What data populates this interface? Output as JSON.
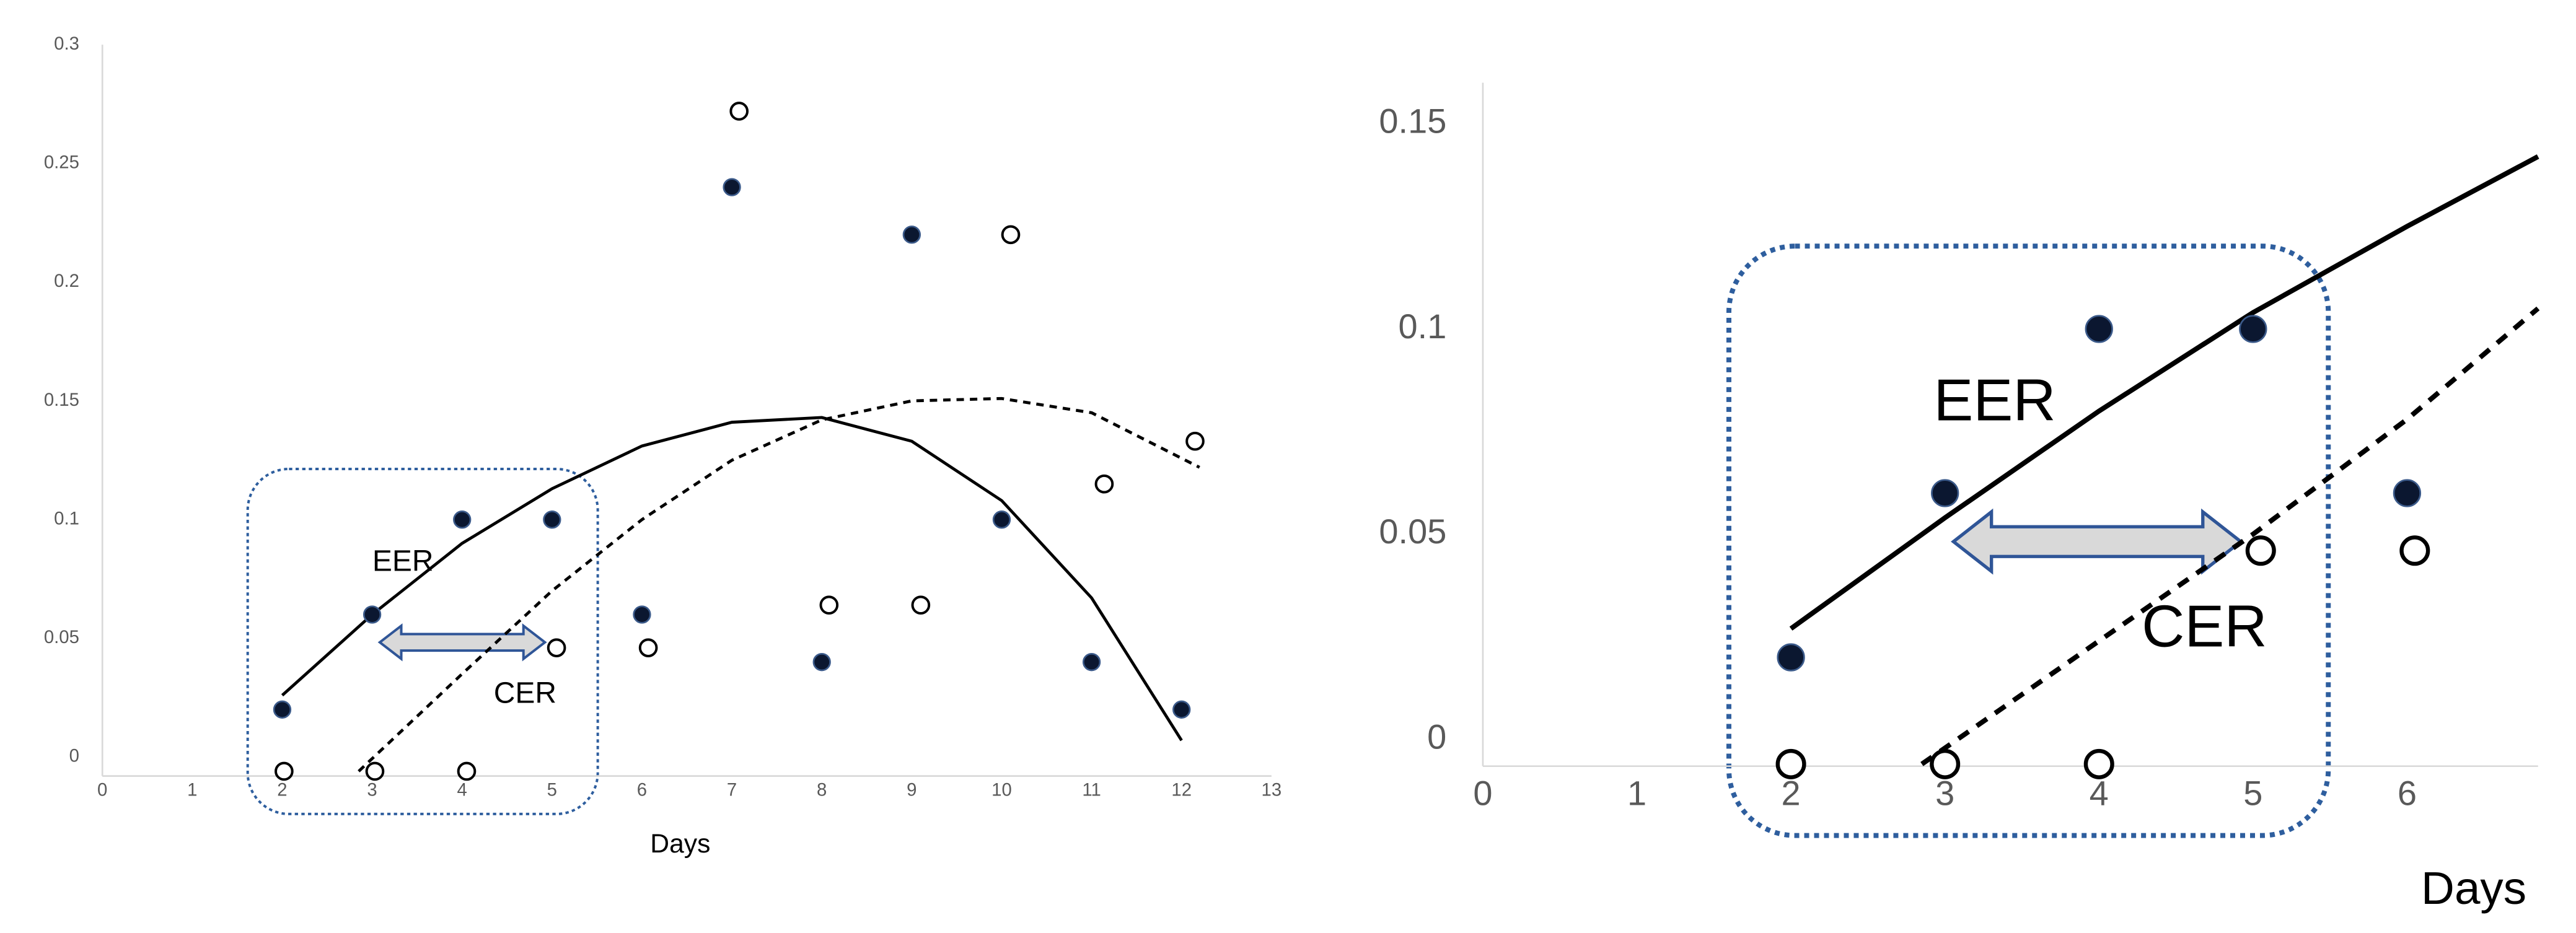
{
  "chart_data": [
    {
      "type": "scatter",
      "x_label": "Days",
      "xlim": [
        0,
        13
      ],
      "xticks": [
        0,
        1,
        2,
        3,
        4,
        5,
        6,
        7,
        8,
        9,
        10,
        11,
        12,
        13
      ],
      "ylim": [
        -0.008,
        0.3
      ],
      "yticks": [
        0,
        0.05,
        0.1,
        0.15,
        0.2,
        0.25,
        0.3
      ],
      "annotations": [
        "EER",
        "CER"
      ],
      "series": [
        {
          "marker": "filled",
          "color": "#0b1730",
          "x": [
            2,
            3,
            4,
            5,
            6,
            7,
            8,
            9,
            10,
            11,
            12
          ],
          "values": [
            0.02,
            0.06,
            0.1,
            0.1,
            0.06,
            0.24,
            0.04,
            0.22,
            0.1,
            0.04,
            0.02
          ]
        },
        {
          "marker": "open",
          "color": "#000000",
          "x": [
            2.02,
            3.03,
            4.05,
            5.05,
            6.07,
            7.08,
            8.08,
            9.1,
            10.1,
            11.14,
            12.15
          ],
          "values": [
            -0.006,
            -0.006,
            -0.006,
            0.046,
            0.046,
            0.272,
            0.064,
            0.064,
            0.22,
            0.115,
            0.133
          ]
        },
        {
          "line": "solid",
          "color": "#000000",
          "x": [
            2,
            3,
            4,
            5,
            6,
            7,
            8,
            9,
            10,
            11,
            12
          ],
          "values": [
            0.026,
            0.06,
            0.09,
            0.113,
            0.131,
            0.141,
            0.143,
            0.133,
            0.108,
            0.067,
            0.007
          ]
        },
        {
          "line": "dashed",
          "color": "#000000",
          "x": [
            2.85,
            4,
            5,
            6,
            7,
            8,
            9,
            10,
            11,
            12.2
          ],
          "values": [
            -0.006,
            0.035,
            0.07,
            0.1,
            0.125,
            0.142,
            0.15,
            0.151,
            0.145,
            0.122
          ]
        }
      ]
    },
    {
      "type": "scatter",
      "x_label": "Days",
      "xlim": [
        0,
        6.85
      ],
      "xticks": [
        0,
        1,
        2,
        3,
        4,
        5,
        6
      ],
      "ylim": [
        -0.0065,
        0.16
      ],
      "yticks": [
        0,
        0.05,
        0.1,
        0.15
      ],
      "annotations": [
        "EER",
        "CER"
      ],
      "series": [
        {
          "marker": "filled",
          "color": "#0b1730",
          "x": [
            2,
            3,
            4,
            5,
            6
          ],
          "values": [
            0.02,
            0.06,
            0.1,
            0.1,
            0.06
          ]
        },
        {
          "marker": "open",
          "color": "#000000",
          "x": [
            2,
            3,
            4,
            5.05,
            6.05
          ],
          "values": [
            -0.006,
            -0.006,
            -0.006,
            0.046,
            0.046
          ]
        },
        {
          "line": "solid",
          "color": "#000000",
          "x": [
            2,
            3,
            4,
            5,
            6,
            6.85
          ],
          "values": [
            0.027,
            0.054,
            0.08,
            0.104,
            0.125,
            0.142
          ]
        },
        {
          "line": "dashed",
          "color": "#000000",
          "x": [
            2.85,
            4,
            5,
            6,
            6.85
          ],
          "values": [
            -0.006,
            0.024,
            0.05,
            0.078,
            0.105
          ]
        }
      ]
    }
  ]
}
